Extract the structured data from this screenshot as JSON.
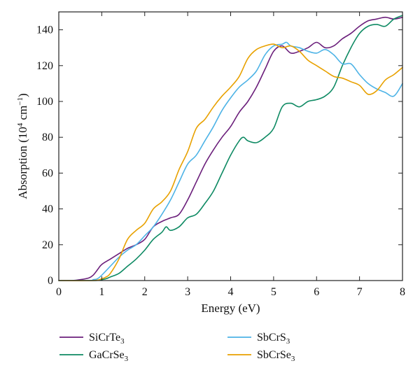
{
  "chart_data": {
    "type": "line",
    "xlabel": "Energy (eV)",
    "ylabel": "Absorption (10^4 cm^-1)",
    "xlim": [
      0,
      8
    ],
    "ylim": [
      0,
      150
    ],
    "xticks": [
      0,
      1,
      2,
      3,
      4,
      5,
      6,
      7,
      8
    ],
    "yticks": [
      0,
      20,
      40,
      60,
      80,
      100,
      120,
      140
    ],
    "grid": false,
    "legend_placement": "below plot, two columns",
    "series": [
      {
        "name": "SiCrTe3",
        "name_base": "SiCrTe",
        "name_sub": "3",
        "color": "#6b1f7b",
        "x": [
          0,
          0.3,
          0.5,
          0.7,
          0.8,
          0.9,
          1.0,
          1.2,
          1.4,
          1.6,
          1.8,
          2.0,
          2.2,
          2.4,
          2.6,
          2.8,
          3.0,
          3.2,
          3.4,
          3.6,
          3.8,
          4.0,
          4.2,
          4.4,
          4.6,
          4.8,
          5.0,
          5.2,
          5.4,
          5.6,
          5.8,
          6.0,
          6.2,
          6.4,
          6.6,
          6.8,
          7.0,
          7.2,
          7.4,
          7.6,
          7.8,
          8.0
        ],
        "y": [
          0,
          0,
          0.5,
          1.5,
          3,
          6,
          9,
          12,
          15,
          18,
          20,
          23,
          30,
          33,
          35,
          37,
          45,
          55,
          65,
          73,
          80,
          86,
          94,
          100,
          108,
          118,
          128,
          131,
          127,
          128,
          130,
          133,
          130,
          131,
          135,
          138,
          142,
          145,
          146,
          147,
          146,
          147
        ]
      },
      {
        "name": "GaCrSe3",
        "name_base": "GaCrSe",
        "name_sub": "3",
        "color": "#0e8a63",
        "x": [
          0,
          0.8,
          0.9,
          1.0,
          1.1,
          1.2,
          1.4,
          1.6,
          1.8,
          2.0,
          2.2,
          2.4,
          2.5,
          2.6,
          2.8,
          3.0,
          3.2,
          3.4,
          3.6,
          3.8,
          4.0,
          4.2,
          4.3,
          4.4,
          4.6,
          4.8,
          5.0,
          5.2,
          5.4,
          5.6,
          5.8,
          6.0,
          6.2,
          6.4,
          6.6,
          6.8,
          7.0,
          7.2,
          7.4,
          7.6,
          7.8,
          8.0
        ],
        "y": [
          0,
          0,
          0.2,
          0.5,
          1,
          2,
          4,
          8,
          12,
          17,
          23,
          27,
          30,
          28,
          30,
          35,
          37,
          43,
          50,
          60,
          70,
          78,
          80,
          78,
          77,
          80,
          85,
          97,
          99,
          97,
          100,
          101,
          103,
          108,
          120,
          130,
          138,
          142,
          143,
          142,
          146,
          148
        ]
      },
      {
        "name": "SbCrS3",
        "name_base": "SbCrS",
        "name_sub": "3",
        "color": "#4db3e6",
        "x": [
          0,
          0.7,
          0.8,
          0.9,
          1.0,
          1.2,
          1.4,
          1.6,
          1.8,
          2.0,
          2.2,
          2.4,
          2.6,
          2.8,
          3.0,
          3.2,
          3.4,
          3.6,
          3.8,
          4.0,
          4.2,
          4.4,
          4.6,
          4.8,
          5.0,
          5.2,
          5.3,
          5.4,
          5.6,
          5.8,
          6.0,
          6.2,
          6.4,
          6.6,
          6.8,
          7.0,
          7.2,
          7.4,
          7.6,
          7.8,
          8.0
        ],
        "y": [
          0,
          0,
          0.5,
          1,
          3,
          8,
          13,
          17,
          20,
          25,
          30,
          37,
          45,
          55,
          65,
          70,
          78,
          86,
          95,
          102,
          108,
          112,
          117,
          126,
          131,
          132,
          133,
          131,
          130,
          128,
          127,
          129,
          126,
          121,
          121,
          115,
          110,
          107,
          105,
          103,
          110
        ]
      },
      {
        "name": "SbCrSe3",
        "name_base": "SbCrSe",
        "name_sub": "3",
        "color": "#e8a100",
        "x": [
          0,
          0.8,
          1.0,
          1.1,
          1.2,
          1.4,
          1.6,
          1.8,
          2.0,
          2.2,
          2.4,
          2.6,
          2.8,
          3.0,
          3.2,
          3.4,
          3.6,
          3.8,
          4.0,
          4.2,
          4.4,
          4.6,
          4.8,
          5.0,
          5.2,
          5.4,
          5.6,
          5.8,
          6.0,
          6.2,
          6.4,
          6.6,
          6.8,
          7.0,
          7.2,
          7.4,
          7.6,
          7.8,
          8.0
        ],
        "y": [
          0,
          0,
          1,
          2,
          4,
          12,
          23,
          28,
          32,
          40,
          44,
          50,
          62,
          72,
          85,
          90,
          97,
          103,
          108,
          114,
          124,
          129,
          131,
          132,
          130,
          131,
          128,
          123,
          120,
          117,
          114,
          113,
          111,
          109,
          104,
          106,
          112,
          115,
          119
        ]
      }
    ]
  }
}
